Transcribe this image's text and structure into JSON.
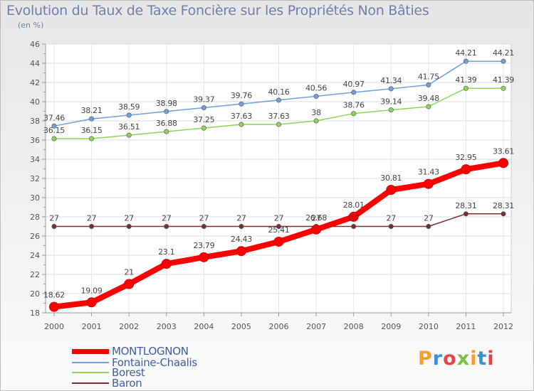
{
  "chart_data": {
    "type": "line",
    "title": "Evolution du Taux de Taxe Foncière sur les Propriétés Non Bâties",
    "unit_label": "(en %)",
    "categories": [
      "2000",
      "2001",
      "2002",
      "2003",
      "2004",
      "2005",
      "2006",
      "2007",
      "2008",
      "2009",
      "2010",
      "2011",
      "2012"
    ],
    "ylim": [
      18,
      46
    ],
    "yticks": [
      "18",
      "20",
      "22",
      "24",
      "26",
      "28",
      "30",
      "32",
      "34",
      "36",
      "38",
      "40",
      "42",
      "44",
      "46"
    ],
    "grid": true,
    "series": [
      {
        "name": "MONTLOGNON",
        "color": "#ff0000",
        "values": [
          18.62,
          19.09,
          21,
          23.1,
          23.79,
          24.43,
          25.41,
          26.68,
          28.01,
          30.81,
          31.43,
          32.95,
          33.61
        ],
        "labels": [
          "18.62",
          "19.09",
          "21",
          "23.1",
          "23.79",
          "24.43",
          "25.41",
          "26.68",
          "28.01",
          "30.81",
          "31.43",
          "32.95",
          "33.61"
        ]
      },
      {
        "name": "Fontaine-Chaalis",
        "color": "#6fa0d8",
        "values": [
          37.46,
          38.21,
          38.59,
          38.98,
          39.37,
          39.76,
          40.16,
          40.56,
          40.97,
          41.34,
          41.75,
          44.21,
          44.21
        ],
        "labels": [
          "37.46",
          "38.21",
          "38.59",
          "38.98",
          "39.37",
          "39.76",
          "40.16",
          "40.56",
          "40.97",
          "41.34",
          "41.75",
          "44.21",
          "44.21"
        ]
      },
      {
        "name": "Borest",
        "color": "#8fd45a",
        "values": [
          36.15,
          36.15,
          36.51,
          36.88,
          37.25,
          37.63,
          37.63,
          38,
          38.76,
          39.14,
          39.48,
          41.39,
          41.39
        ],
        "labels": [
          "36.15",
          "36.15",
          "36.51",
          "36.88",
          "37.25",
          "37.63",
          "37.63",
          "38",
          "38.76",
          "39.14",
          "39.48",
          "41.39",
          "41.39"
        ]
      },
      {
        "name": "Baron",
        "color": "#7a2e2e",
        "values": [
          27,
          27,
          27,
          27,
          27,
          27,
          27,
          27,
          27,
          27,
          27,
          28.31,
          28.31
        ],
        "labels": [
          "27",
          "27",
          "27",
          "27",
          "27",
          "27",
          "27",
          "27",
          "27",
          "27",
          "27",
          "28.31",
          "28.31"
        ]
      }
    ],
    "legend_position": "bottom-left",
    "brand": "Proxiti"
  }
}
